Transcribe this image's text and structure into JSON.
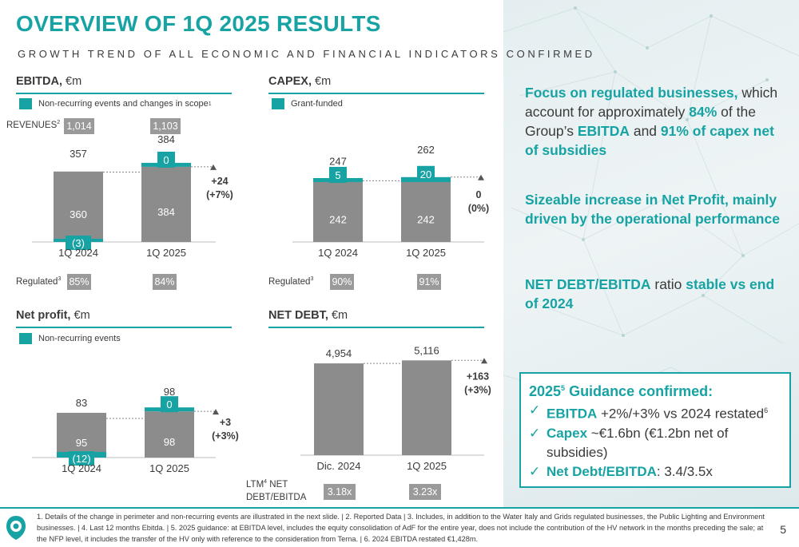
{
  "header": {
    "title": "OVERVIEW OF 1Q 2025 RESULTS",
    "subtitle": "GROWTH TREND OF ALL ECONOMIC AND FINANCIAL INDICATORS CONFIRMED"
  },
  "ebitda": {
    "title": "EBITDA,",
    "unit": "€m",
    "legend": "Non-recurring events and changes in scope",
    "legend_sup": "1",
    "revenues_label": "REVENUES",
    "revenues_sup": "2",
    "revenues": [
      "1,014",
      "1,103"
    ],
    "regulated_label": "Regulated",
    "regulated_sup": "3",
    "regulated": [
      "85%",
      "84%"
    ]
  },
  "capex": {
    "title": "CAPEX,",
    "unit": "€m",
    "legend": "Grant-funded",
    "regulated_label": "Regulated",
    "regulated_sup": "3",
    "regulated": [
      "90%",
      "91%"
    ]
  },
  "net_profit": {
    "title": "Net profit,",
    "unit": "€m",
    "legend": "Non-recurring events"
  },
  "net_debt": {
    "title": "NET DEBT,",
    "unit": "€m",
    "ltm_label": "LTM",
    "ltm_sup": "4",
    "ltm_label_rest": " NET",
    "ltm_label2": "DEBT/EBITDA",
    "ltm": [
      "3.18x",
      "3.23x"
    ]
  },
  "chart_data": [
    {
      "type": "bar",
      "name": "EBITDA",
      "categories": [
        "1Q 2024",
        "1Q 2025"
      ],
      "series": [
        {
          "values": [
            360,
            384
          ],
          "labels": [
            "360",
            "384"
          ]
        },
        {
          "values": [
            -3,
            0
          ],
          "labels": [
            "(3)",
            "0"
          ]
        }
      ],
      "totals": [
        "357",
        "384"
      ],
      "total_values": [
        357,
        384
      ],
      "delta": [
        "+24",
        "(+7%)"
      ],
      "ylim": [
        -10,
        400
      ]
    },
    {
      "type": "bar",
      "name": "CAPEX",
      "categories": [
        "1Q 2024",
        "1Q 2025"
      ],
      "series": [
        {
          "values": [
            242,
            242
          ],
          "labels": [
            "242",
            "242"
          ]
        },
        {
          "values": [
            5,
            20
          ],
          "labels": [
            "5",
            "20"
          ]
        }
      ],
      "totals": [
        "247",
        "262"
      ],
      "total_values": [
        247,
        262
      ],
      "delta": [
        "0",
        "(0%)"
      ],
      "ylim": [
        0,
        280
      ]
    },
    {
      "type": "bar",
      "name": "Net profit",
      "categories": [
        "1Q 2024",
        "1Q 2025"
      ],
      "series": [
        {
          "values": [
            95,
            98
          ],
          "labels": [
            "95",
            "98"
          ]
        },
        {
          "values": [
            -12,
            0
          ],
          "labels": [
            "(12)",
            "0"
          ]
        }
      ],
      "totals": [
        "83",
        "98"
      ],
      "total_values": [
        83,
        98
      ],
      "delta": [
        "+3",
        "(+3%)"
      ],
      "ylim": [
        -15,
        110
      ]
    },
    {
      "type": "bar",
      "name": "NET DEBT",
      "categories": [
        "Dic. 2024",
        "1Q 2025"
      ],
      "series": [
        {
          "values": [
            4954,
            5116
          ],
          "labels": [
            "",
            ""
          ]
        }
      ],
      "totals": [
        "4,954",
        "5,116"
      ],
      "total_values": [
        4954,
        5116
      ],
      "delta": [
        "+163",
        "(+3%)"
      ],
      "ylim": [
        0,
        5400
      ]
    }
  ],
  "right": {
    "p1": [
      {
        "t": "Focus on regulated businesses,",
        "hl": true
      },
      {
        "t": " which account for approximately ",
        "hl": false
      },
      {
        "t": "84%",
        "hl": true
      },
      {
        "t": " of the Group’s ",
        "hl": false
      },
      {
        "t": "EBITDA",
        "hl": true
      },
      {
        "t": " and ",
        "hl": false
      },
      {
        "t": "91% of capex net of subsidies",
        "hl": true
      }
    ],
    "p2": "Sizeable increase in Net Profit, mainly driven by the operational performance",
    "p3a": "NET DEBT/EBITDA",
    "p3b": " ratio ",
    "p3c": "stable vs end of 2024"
  },
  "guidance": {
    "title_year": "2025",
    "title_sup": "5",
    "title_rest": " Guidance confirmed:",
    "check": "✓",
    "items": [
      {
        "hl": "EBITDA",
        "rest": " +2%/+3% vs 2024 restated",
        "sup": "6"
      },
      {
        "hl": "Capex",
        "rest": " ~€1.6bn (€1.2bn net of subsidies)",
        "sup": ""
      },
      {
        "hl": "Net Debt/EBITDA",
        "rest": ": 3.4/3.5x",
        "sup": ""
      }
    ]
  },
  "footer": {
    "notes": "1. Details of the change in perimeter and non-recurring events are illustrated in the next slide. | 2. Reported Data | 3. Includes, in addition to the Water Italy and Grids regulated businesses, the Public Lighting and Environment businesses. | 4. Last 12 months Ebitda. | 5. 2025 guidance: at EBITDA level, includes the equity consolidation of AdF for the entire year, does not include the contribution of the HV network in the months preceding the sale; at the NFP level, it includes the transfer of the HV only with reference to the consideration from Terna. | 6. 2024 EBITDA restated €1,428m.",
    "page": "5"
  },
  "colors": {
    "accent": "#17a3a3",
    "bar": "#8c8c8c",
    "box": "#9a9a9a"
  }
}
